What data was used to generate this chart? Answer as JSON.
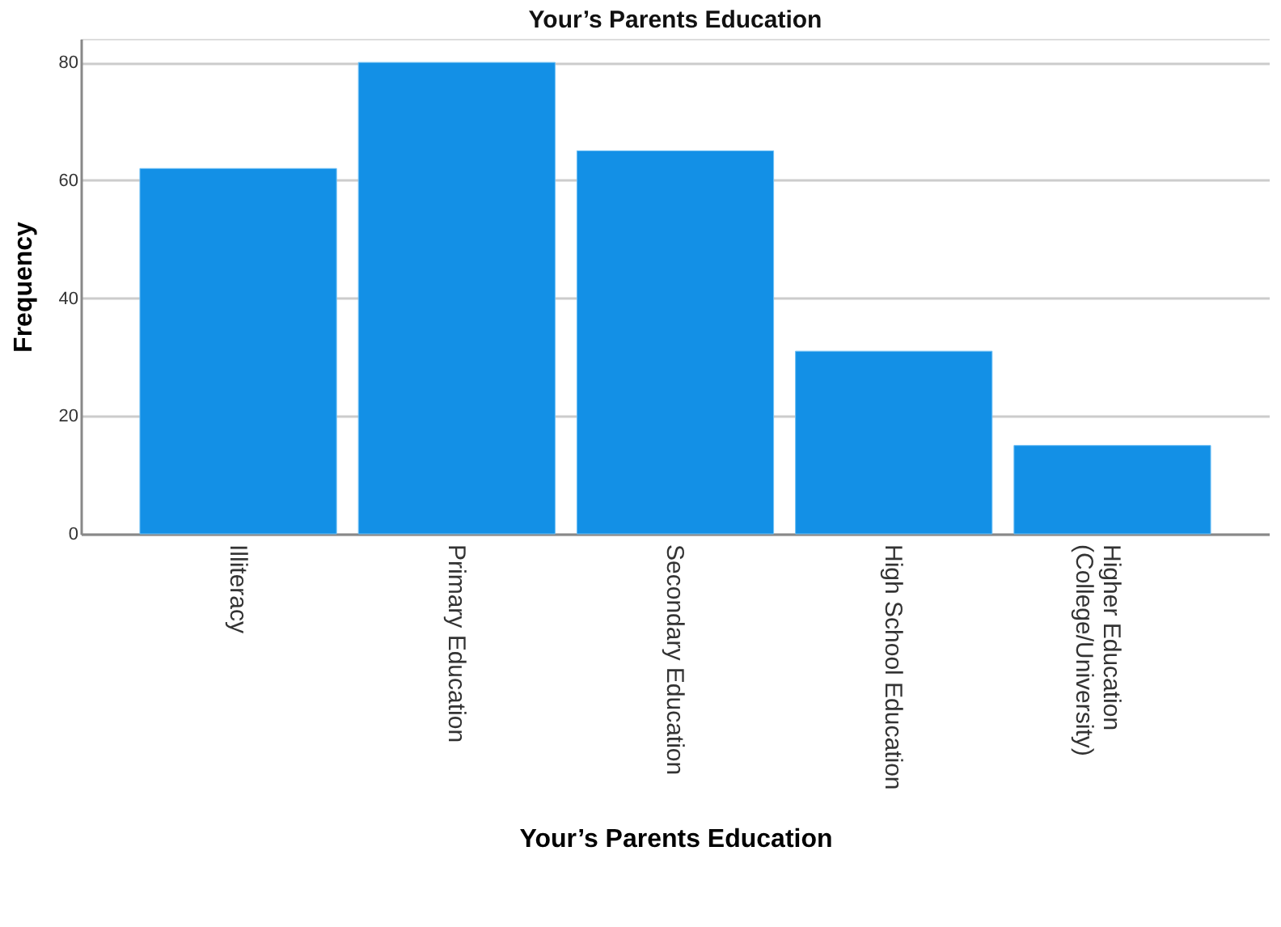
{
  "chart_data": {
    "type": "bar",
    "title": "Your’s Parents Education",
    "xlabel": "Your’s Parents Education",
    "ylabel": "Frequency",
    "categories": [
      "Illiteracy",
      "Primary Education",
      "Secondary Education",
      "High School Education",
      "Higher Education\n(College/University)"
    ],
    "values": [
      62,
      80,
      65,
      31,
      15
    ],
    "color": "#1390e6",
    "ylim": [
      0,
      84
    ],
    "yticks": [
      0,
      20,
      40,
      60,
      80
    ],
    "grid": "y"
  }
}
